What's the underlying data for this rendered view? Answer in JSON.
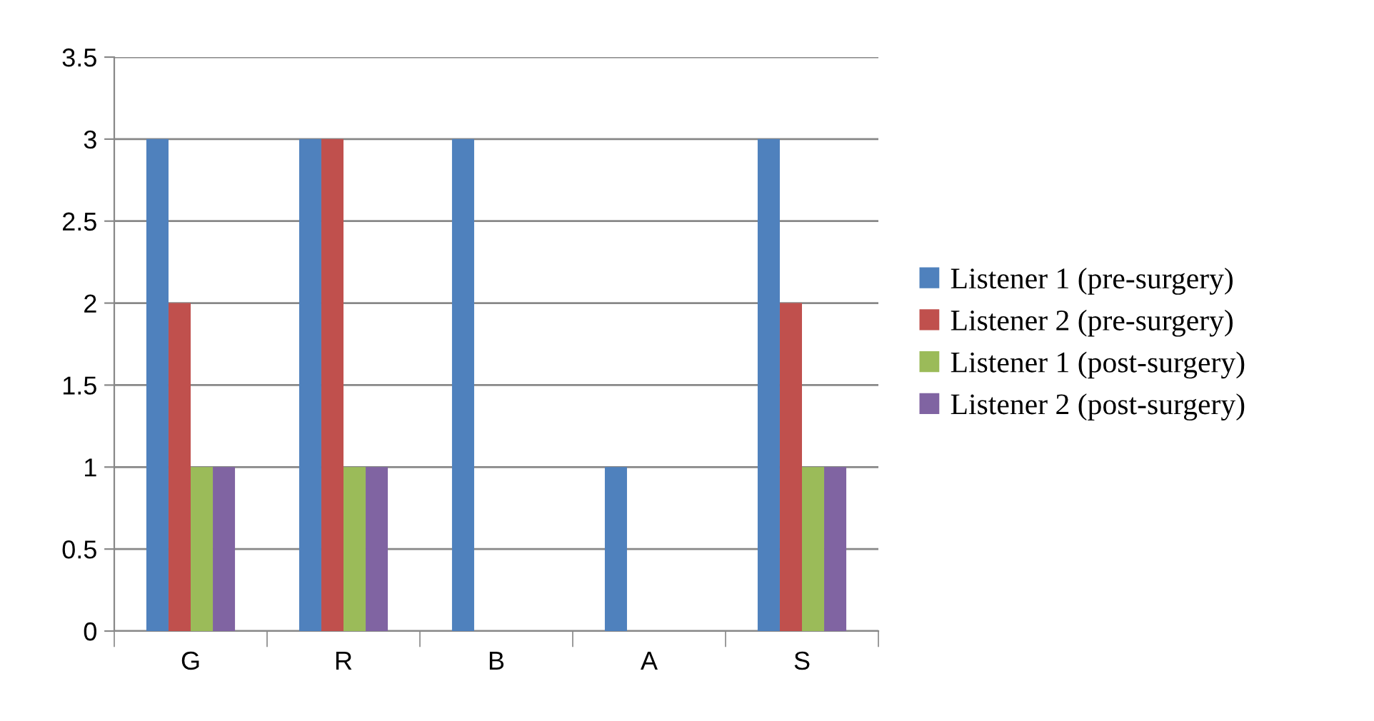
{
  "chart_data": {
    "type": "bar",
    "categories": [
      "G",
      "R",
      "B",
      "A",
      "S"
    ],
    "series": [
      {
        "name": "Listener 1 (pre-surgery)",
        "color": "#4f81bd",
        "values": [
          3,
          3,
          3,
          1,
          3
        ]
      },
      {
        "name": "Listener 2 (pre-surgery)",
        "color": "#c0504d",
        "values": [
          2,
          3,
          0,
          0,
          2
        ]
      },
      {
        "name": "Listener 1 (post-surgery)",
        "color": "#9bbb59",
        "values": [
          1,
          1,
          0,
          0,
          1
        ]
      },
      {
        "name": "Listener 2 (post-surgery)",
        "color": "#8064a2",
        "values": [
          1,
          1,
          0,
          0,
          1
        ]
      }
    ],
    "ylim": [
      0,
      3.5
    ],
    "yticks": [
      0,
      0.5,
      1,
      1.5,
      2,
      2.5,
      3,
      3.5
    ],
    "grid": "y",
    "legend": "right"
  }
}
